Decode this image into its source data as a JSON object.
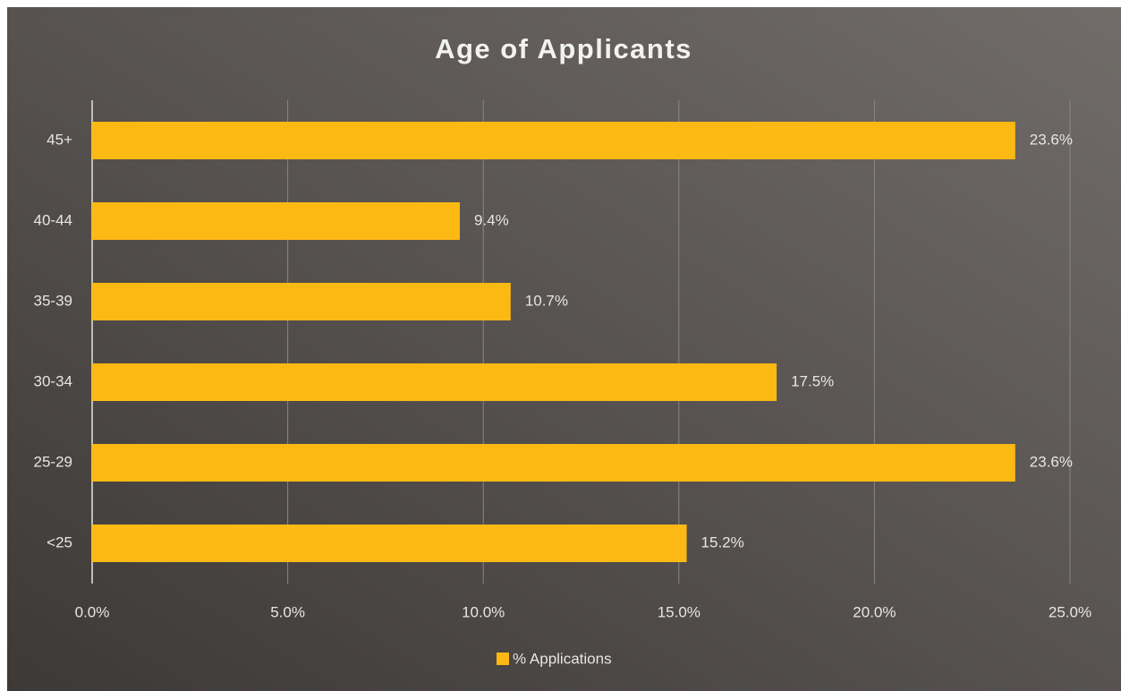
{
  "chart_data": {
    "type": "hbar",
    "title": "Age of Applicants",
    "categories": [
      "<25",
      "25-29",
      "30-34",
      "35-39",
      "40-44",
      "45+"
    ],
    "series": [
      {
        "name": "% Applications",
        "color": "#fdb913",
        "values": [
          15.2,
          23.6,
          17.5,
          10.7,
          9.4,
          23.6
        ],
        "value_labels": [
          "15.2%",
          "23.6%",
          "17.5%",
          "10.7%",
          "9.4%",
          "23.6%"
        ]
      }
    ],
    "xlim": [
      0,
      25
    ],
    "xticks": [
      {
        "value": 0,
        "label": "0.0%"
      },
      {
        "value": 5,
        "label": "5.0%"
      },
      {
        "value": 10,
        "label": "10.0%"
      },
      {
        "value": 15,
        "label": "15.0%"
      },
      {
        "value": 20,
        "label": "20.0%"
      },
      {
        "value": 25,
        "label": "25.0%"
      }
    ],
    "grid": true,
    "legend": "bottom"
  }
}
